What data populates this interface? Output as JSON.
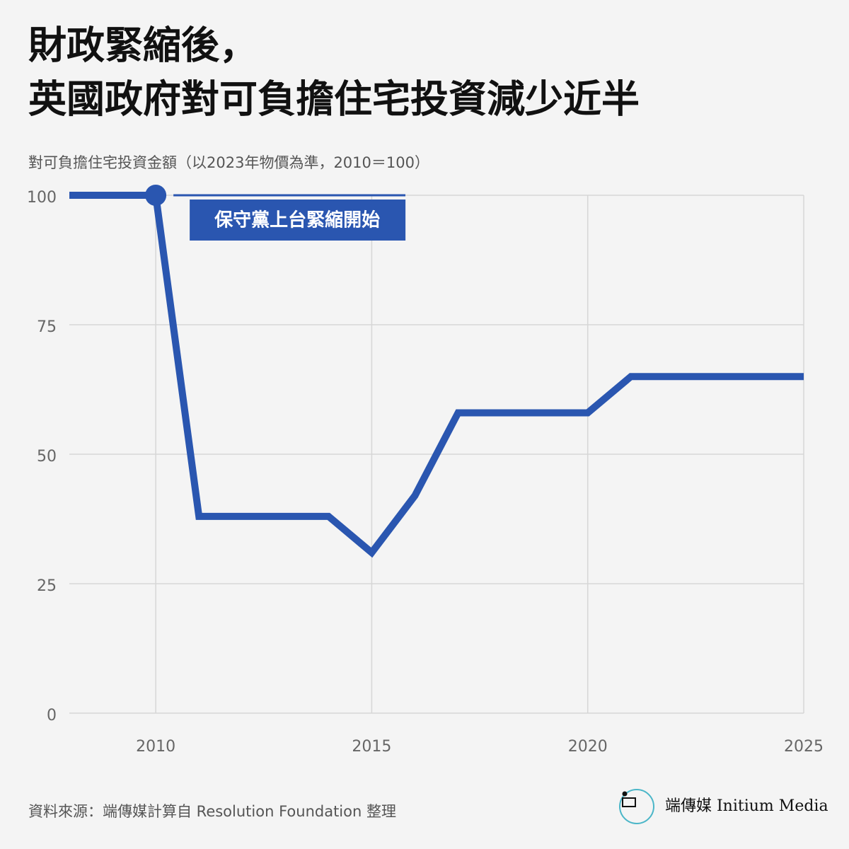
{
  "chart_data": {
    "type": "line",
    "title": [
      "財政緊縮後，",
      "英國政府對可負擔住宅投資減少近半"
    ],
    "subtitle": "對可負擔住宅投資金額（以2023年物價為準，2010＝100）",
    "x": [
      2008,
      2009,
      2010,
      2011,
      2012,
      2013,
      2014,
      2015,
      2016,
      2017,
      2018,
      2019,
      2020,
      2021,
      2022,
      2023,
      2024,
      2025
    ],
    "values": [
      100,
      100,
      100,
      38,
      38,
      38,
      38,
      31,
      42,
      58,
      58,
      58,
      58,
      65,
      65,
      65,
      65,
      65
    ],
    "color": "#2a56b0",
    "xlim": [
      2008,
      2025
    ],
    "xticks": [
      2010,
      2015,
      2020,
      2025
    ],
    "ylim": [
      0,
      100
    ],
    "yticks": [
      0,
      25,
      50,
      75,
      100
    ],
    "grid": true,
    "annotation": {
      "text": "保守黨上台緊縮開始",
      "x": 2010,
      "y": 100
    },
    "source": "資料來源：端傳媒計算自 Resolution Foundation 整理",
    "logo": "端傳媒 Initium Media"
  }
}
